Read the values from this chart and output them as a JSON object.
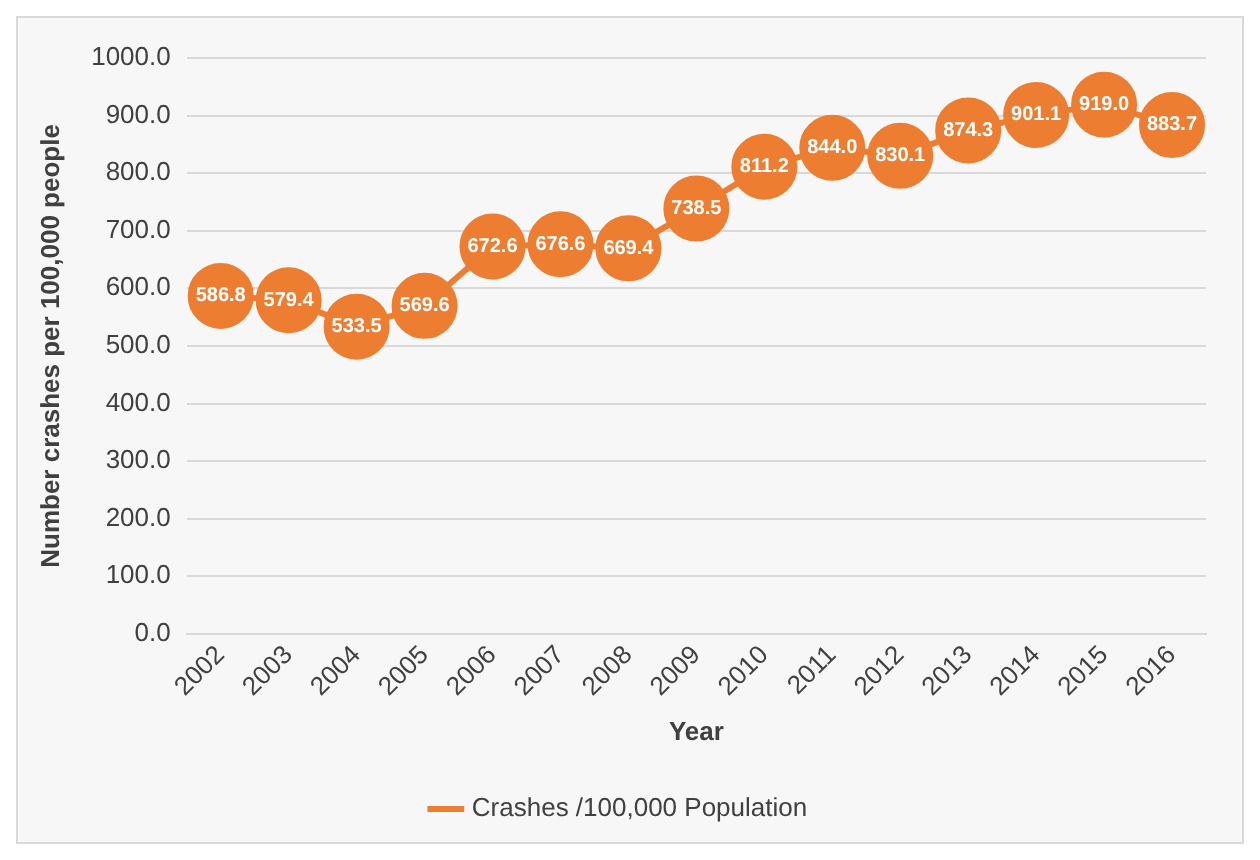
{
  "chart_data": {
    "type": "line",
    "xlabel": "Year",
    "ylabel": "Number crashes per 100,000 people",
    "categories": [
      "2002",
      "2003",
      "2004",
      "2005",
      "2006",
      "2007",
      "2008",
      "2009",
      "2010",
      "2011",
      "2012",
      "2013",
      "2014",
      "2015",
      "2016"
    ],
    "series": [
      {
        "name": "Crashes /100,000 Population",
        "color": "#ed7d31",
        "values": [
          586.8,
          579.4,
          533.5,
          569.6,
          672.6,
          676.6,
          669.4,
          738.5,
          811.2,
          844.0,
          830.1,
          874.3,
          901.1,
          919.0,
          883.7
        ],
        "value_labels": [
          "586.8",
          "579.4",
          "533.5",
          "569.6",
          "672.6",
          "676.6",
          "669.4",
          "738.5",
          "811.2",
          "844.0",
          "830.1",
          "874.3",
          "901.1",
          "919.0",
          "883.7"
        ]
      }
    ],
    "ylim": [
      0,
      1000
    ],
    "yticks": [
      {
        "value": 0,
        "label": "0.0"
      },
      {
        "value": 100,
        "label": "100.0"
      },
      {
        "value": 200,
        "label": "200.0"
      },
      {
        "value": 300,
        "label": "300.0"
      },
      {
        "value": 400,
        "label": "400.0"
      },
      {
        "value": 500,
        "label": "500.0"
      },
      {
        "value": 600,
        "label": "600.0"
      },
      {
        "value": 700,
        "label": "700.0"
      },
      {
        "value": 800,
        "label": "800.0"
      },
      {
        "value": 900,
        "label": "900.0"
      },
      {
        "value": 1000,
        "label": "1000.0"
      }
    ],
    "grid": "y",
    "legend": "bottom",
    "marker": "circle",
    "line_style": "solid"
  }
}
